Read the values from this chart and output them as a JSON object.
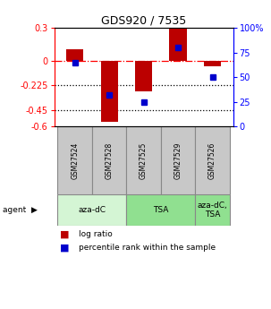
{
  "title": "GDS920 / 7535",
  "samples": [
    "GSM27524",
    "GSM27528",
    "GSM27525",
    "GSM27529",
    "GSM27526"
  ],
  "log_ratios": [
    0.105,
    -0.555,
    -0.28,
    0.29,
    -0.05
  ],
  "percentile_ranks": [
    65,
    32,
    25,
    80,
    50
  ],
  "ylim": [
    -0.6,
    0.3
  ],
  "yticks_left": [
    0.3,
    0.0,
    -0.225,
    -0.45,
    -0.6
  ],
  "yticks_left_labels": [
    "0.3",
    "0",
    "-0.225",
    "-0.45",
    "-0.6"
  ],
  "yticks_right_pct": [
    100,
    75,
    50,
    25,
    0
  ],
  "yticks_right_labels": [
    "100%",
    "75",
    "50",
    "25",
    "0"
  ],
  "hlines_dotted": [
    -0.225,
    -0.45
  ],
  "hline_dashdot": 0.0,
  "bar_color": "#bb0000",
  "dot_color": "#0000cc",
  "bar_width": 0.5,
  "agent_configs": [
    {
      "label": "aza-dC",
      "xmin": -0.5,
      "xmax": 1.5,
      "color": "#d4f5d4"
    },
    {
      "label": "TSA",
      "xmin": 1.5,
      "xmax": 3.5,
      "color": "#90e090"
    },
    {
      "label": "aza-dC,\nTSA",
      "xmin": 3.5,
      "xmax": 4.5,
      "color": "#90e090"
    }
  ],
  "legend_log_ratio": "log ratio",
  "legend_percentile": "percentile rank within the sample",
  "sample_box_color": "#c8c8c8"
}
